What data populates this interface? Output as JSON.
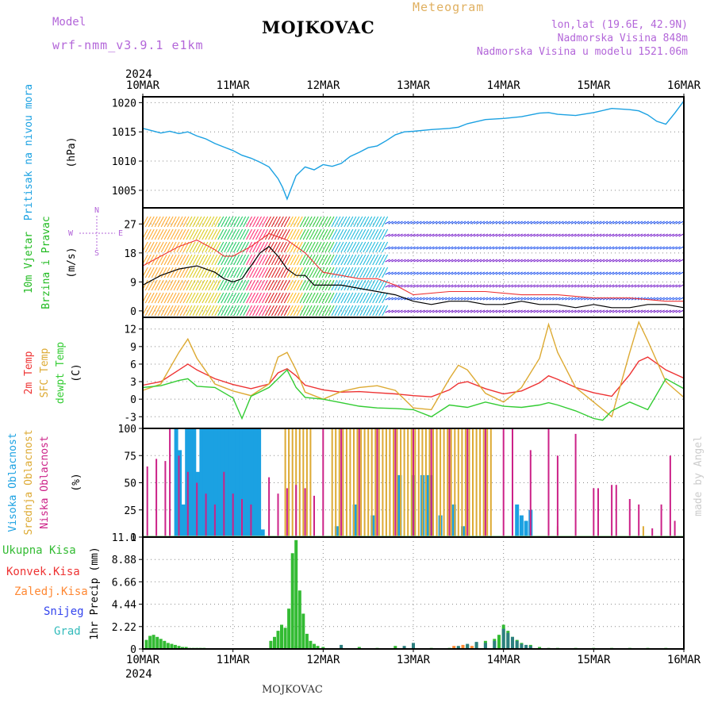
{
  "header": {
    "model_label": "Model",
    "model_name": "wrf-nmm_v3.9.1 e1km",
    "station": "MOJKOVAC",
    "meteogram_label": "Meteogram",
    "lonlat": "lon,lat (19.6E, 42.9N)",
    "elevation": "Nadmorska Visina 848m",
    "elevation_model": "Nadmorska Visina u modelu 1521.06m",
    "year_top": "2024",
    "year_bottom": "2024",
    "bottom_station": "MOJKOVAC",
    "credit": "made by Angel"
  },
  "colors": {
    "pressure": "#1ba1e2",
    "wind_label": "#22bb22",
    "temp2m": "#ee3333",
    "sfc": "#ddaa33",
    "dewpt": "#33cc33",
    "high_cloud": "#1ba1e2",
    "mid_cloud": "#ddaa33",
    "low_cloud": "#cc2288",
    "precip_total": "#33bb33",
    "precip_conv": "#ee3333",
    "precip_frozen": "#ff8833",
    "snow": "#3344ee",
    "graupel": "#33bbbb"
  },
  "chart_data": [
    {
      "type": "line",
      "panel": "pressure",
      "ylabel_series": "Pritisak na nivou mora",
      "ylabel_unit": "(hPa)",
      "x_ticks": [
        "10MAR",
        "11MAR",
        "12MAR",
        "13MAR",
        "14MAR",
        "15MAR",
        "16MAR"
      ],
      "y_ticks": [
        1005,
        1010,
        1015,
        1020
      ],
      "ylim": [
        1002,
        1021
      ],
      "grid": true,
      "series": [
        {
          "color": "#1ba1e2",
          "x": [
            0,
            0.1,
            0.2,
            0.3,
            0.4,
            0.5,
            0.6,
            0.7,
            0.8,
            0.9,
            1.0,
            1.1,
            1.2,
            1.3,
            1.4,
            1.5,
            1.55,
            1.6,
            1.65,
            1.7,
            1.8,
            1.9,
            2.0,
            2.1,
            2.2,
            2.3,
            2.4,
            2.5,
            2.6,
            2.7,
            2.8,
            2.9,
            3.0,
            3.2,
            3.4,
            3.5,
            3.6,
            3.8,
            4.0,
            4.2,
            4.4,
            4.5,
            4.6,
            4.8,
            5.0,
            5.2,
            5.4,
            5.5,
            5.6,
            5.7,
            5.8,
            5.9,
            6.0
          ],
          "values": [
            1015.6,
            1015.2,
            1014.8,
            1015.1,
            1014.7,
            1015.0,
            1014.3,
            1013.8,
            1013.0,
            1012.4,
            1011.8,
            1011.0,
            1010.5,
            1009.8,
            1009.0,
            1007.0,
            1005.5,
            1003.5,
            1005.5,
            1007.5,
            1009.0,
            1008.5,
            1009.4,
            1009.1,
            1009.6,
            1010.8,
            1011.5,
            1012.3,
            1012.6,
            1013.5,
            1014.5,
            1015.0,
            1015.1,
            1015.4,
            1015.6,
            1015.8,
            1016.4,
            1017.1,
            1017.3,
            1017.6,
            1018.2,
            1018.3,
            1018.0,
            1017.8,
            1018.3,
            1019.0,
            1018.8,
            1018.6,
            1017.9,
            1016.8,
            1016.3,
            1018.2,
            1020.3
          ]
        }
      ]
    },
    {
      "type": "line",
      "panel": "wind",
      "ylabel_series": "10m Vjetar",
      "ylabel_series2": "Brzina i Pravac",
      "ylabel_unit": "(m/s)",
      "compass": [
        "N",
        "W",
        "E",
        "S"
      ],
      "y_ticks": [
        0,
        9,
        18,
        27
      ],
      "ylim": [
        -2,
        32
      ],
      "grid": true,
      "series": [
        {
          "name": "speed",
          "color": "#000000",
          "x": [
            0,
            0.2,
            0.4,
            0.6,
            0.8,
            0.9,
            1.0,
            1.1,
            1.2,
            1.3,
            1.4,
            1.5,
            1.6,
            1.7,
            1.8,
            1.9,
            2.0,
            2.2,
            2.4,
            2.6,
            2.8,
            3.0,
            3.2,
            3.4,
            3.6,
            3.8,
            4.0,
            4.2,
            4.4,
            4.6,
            4.8,
            5.0,
            5.2,
            5.4,
            5.6,
            5.8,
            6.0
          ],
          "values": [
            8,
            11,
            13,
            14,
            12,
            10,
            9,
            10,
            14,
            18,
            20,
            17,
            13,
            11,
            11,
            8,
            8,
            8,
            7,
            6,
            5,
            3,
            2,
            3,
            3,
            2,
            2,
            3,
            2,
            2,
            1,
            2,
            1,
            1,
            2,
            2,
            1
          ]
        },
        {
          "name": "gust",
          "color": "#ee3333",
          "x": [
            0,
            0.2,
            0.4,
            0.6,
            0.8,
            0.9,
            1.0,
            1.2,
            1.4,
            1.6,
            1.8,
            2.0,
            2.2,
            2.4,
            2.6,
            2.8,
            3.0,
            3.4,
            3.8,
            4.2,
            4.6,
            5.0,
            5.4,
            5.8,
            6.0
          ],
          "values": [
            14,
            17,
            20,
            22,
            19,
            17,
            17,
            20,
            24,
            22,
            18,
            12,
            11,
            10,
            10,
            8,
            5,
            6,
            6,
            5,
            5,
            4,
            4,
            3,
            3
          ]
        }
      ]
    },
    {
      "type": "line",
      "panel": "temperature",
      "ylabel_lines": [
        "2m Temp",
        "SFC Temp",
        "dewpt Temp"
      ],
      "ylabel_unit": "(C)",
      "y_ticks": [
        -3,
        0,
        3,
        6,
        9,
        12
      ],
      "ylim": [
        -5,
        14
      ],
      "grid": true,
      "series": [
        {
          "name": "2m Temp",
          "color": "#ee3333",
          "x": [
            0,
            0.2,
            0.4,
            0.5,
            0.6,
            0.8,
            1.0,
            1.2,
            1.4,
            1.5,
            1.6,
            1.7,
            1.8,
            2.0,
            2.2,
            2.4,
            2.6,
            2.8,
            3.0,
            3.2,
            3.4,
            3.5,
            3.6,
            3.8,
            4.0,
            4.2,
            4.4,
            4.5,
            4.6,
            4.8,
            5.0,
            5.2,
            5.4,
            5.5,
            5.6,
            5.8,
            6.0
          ],
          "values": [
            2.4,
            3.0,
            5.0,
            6.0,
            5.0,
            3.5,
            2.5,
            1.8,
            2.6,
            4.5,
            5.2,
            4.0,
            2.4,
            1.6,
            1.2,
            1.3,
            1.1,
            0.9,
            0.6,
            0.4,
            1.6,
            2.7,
            3.0,
            1.8,
            0.9,
            1.4,
            2.8,
            4.0,
            3.4,
            2.0,
            1.1,
            0.5,
            4.2,
            6.5,
            7.2,
            5.0,
            3.6
          ]
        },
        {
          "name": "SFC Temp",
          "color": "#ddaa33",
          "x": [
            0,
            0.2,
            0.4,
            0.5,
            0.6,
            0.8,
            1.0,
            1.2,
            1.4,
            1.5,
            1.6,
            1.7,
            1.8,
            2.0,
            2.2,
            2.4,
            2.6,
            2.8,
            3.0,
            3.2,
            3.4,
            3.5,
            3.6,
            3.8,
            4.0,
            4.2,
            4.4,
            4.5,
            4.6,
            4.8,
            5.0,
            5.2,
            5.4,
            5.5,
            5.6,
            5.8,
            6.0
          ],
          "values": [
            1.5,
            2.6,
            8.0,
            10.3,
            7.0,
            2.6,
            1.4,
            0.6,
            2.6,
            7.2,
            8.0,
            5.0,
            1.2,
            0.0,
            1.3,
            2.0,
            2.3,
            1.5,
            -1.5,
            -1.8,
            3.5,
            5.8,
            5.0,
            1.0,
            -0.5,
            2.0,
            7.0,
            12.8,
            8.0,
            2.0,
            -0.5,
            -3.0,
            8.0,
            13.2,
            10.0,
            3.0,
            0.3
          ]
        },
        {
          "name": "dewpt Temp",
          "color": "#33cc33",
          "x": [
            0,
            0.2,
            0.4,
            0.5,
            0.6,
            0.8,
            1.0,
            1.1,
            1.2,
            1.4,
            1.5,
            1.6,
            1.7,
            1.8,
            2.0,
            2.2,
            2.4,
            2.6,
            2.8,
            3.0,
            3.2,
            3.4,
            3.6,
            3.8,
            4.0,
            4.2,
            4.4,
            4.5,
            4.6,
            4.8,
            5.0,
            5.1,
            5.2,
            5.4,
            5.6,
            5.8,
            6.0
          ],
          "values": [
            2.0,
            2.3,
            3.2,
            3.5,
            2.2,
            2.0,
            0.2,
            -3.3,
            0.5,
            2.0,
            3.5,
            5.0,
            2.0,
            0.3,
            0.0,
            -0.6,
            -1.2,
            -1.5,
            -1.6,
            -1.8,
            -3.0,
            -1.0,
            -1.4,
            -0.5,
            -1.2,
            -1.4,
            -1.0,
            -0.6,
            -1.0,
            -2.0,
            -3.3,
            -3.6,
            -2.0,
            -0.5,
            -1.8,
            3.5,
            1.8
          ]
        }
      ]
    },
    {
      "type": "bar",
      "panel": "clouds",
      "ylabel_lines": [
        "Visoka Oblacnost",
        "Srednja Oblacnost",
        "Niska Oblacnost"
      ],
      "ylabel_unit": "(%)",
      "y_ticks": [
        0,
        25,
        50,
        75,
        100
      ],
      "ylim": [
        0,
        100
      ],
      "series": [
        {
          "name": "Visoka Oblacnost",
          "color": "#1ba1e2",
          "x": [
            0.37,
            0.41,
            0.45,
            0.49,
            0.53,
            0.57,
            0.61,
            0.65,
            0.69,
            0.73,
            0.77,
            0.81,
            0.85,
            0.89,
            0.93,
            0.97,
            1.01,
            1.05,
            1.09,
            1.13,
            1.17,
            1.21,
            1.25,
            1.29,
            1.33,
            2.15,
            2.35,
            2.55,
            2.85,
            3.0,
            3.1,
            3.15,
            3.2,
            3.3,
            3.45,
            3.55,
            4.15,
            4.2,
            4.25,
            4.3
          ],
          "values": [
            100,
            80,
            30,
            100,
            100,
            100,
            60,
            100,
            100,
            100,
            100,
            100,
            100,
            100,
            100,
            100,
            100,
            100,
            100,
            100,
            100,
            100,
            100,
            100,
            7,
            10,
            30,
            20,
            57,
            57,
            57,
            57,
            57,
            20,
            30,
            10,
            30,
            20,
            15,
            25
          ]
        },
        {
          "name": "Srednja Oblacnost",
          "color": "#ddaa33",
          "x": [
            1.58,
            1.62,
            1.66,
            1.7,
            1.74,
            1.78,
            1.82,
            1.86,
            1.9,
            2.1,
            2.14,
            2.18,
            2.22,
            2.26,
            2.3,
            2.34,
            2.38,
            2.42,
            2.46,
            2.5,
            2.54,
            2.58,
            2.62,
            2.66,
            2.7,
            2.74,
            2.78,
            2.82,
            2.86,
            2.9,
            2.94,
            2.98,
            3.02,
            3.06,
            3.1,
            3.14,
            3.18,
            3.22,
            3.26,
            3.3,
            3.34,
            3.38,
            3.42,
            3.46,
            3.5,
            3.54,
            3.58,
            3.62,
            3.66,
            3.7,
            3.74,
            3.78,
            3.82,
            3.86,
            4.6,
            5.55
          ],
          "values": [
            100,
            100,
            100,
            100,
            100,
            100,
            100,
            100,
            30,
            100,
            100,
            100,
            100,
            100,
            100,
            100,
            100,
            100,
            100,
            100,
            100,
            100,
            100,
            100,
            100,
            100,
            100,
            100,
            100,
            100,
            100,
            100,
            100,
            100,
            100,
            100,
            100,
            100,
            100,
            100,
            100,
            100,
            100,
            100,
            100,
            100,
            100,
            100,
            100,
            100,
            100,
            100,
            100,
            100,
            10,
            10
          ]
        },
        {
          "name": "Niska Oblacnost",
          "color": "#cc2288",
          "x": [
            0.05,
            0.15,
            0.25,
            0.3,
            0.4,
            0.5,
            0.6,
            0.7,
            0.8,
            0.9,
            1.0,
            1.1,
            1.2,
            1.4,
            1.5,
            1.6,
            1.7,
            1.8,
            1.9,
            2.0,
            2.2,
            2.4,
            2.6,
            2.8,
            3.0,
            3.2,
            3.4,
            3.6,
            3.8,
            4.0,
            4.1,
            4.3,
            4.5,
            4.6,
            4.8,
            5.0,
            5.05,
            5.2,
            5.25,
            5.4,
            5.5,
            5.65,
            5.75,
            5.85,
            5.9
          ],
          "values": [
            65,
            72,
            70,
            100,
            75,
            60,
            50,
            40,
            30,
            60,
            40,
            35,
            30,
            55,
            40,
            45,
            48,
            45,
            38,
            100,
            100,
            100,
            100,
            100,
            100,
            100,
            100,
            100,
            100,
            100,
            100,
            80,
            100,
            75,
            95,
            45,
            45,
            48,
            48,
            35,
            30,
            8,
            30,
            75,
            15
          ]
        }
      ]
    },
    {
      "type": "bar",
      "panel": "precip",
      "ylabel_lines": [
        "Ukupna Kisa",
        "Konvek.Kisa",
        "Zaledj.Kisa",
        "Snijeg",
        "Grad"
      ],
      "ylabel_unit": "1hr Precip (mm)",
      "y_ticks": [
        0,
        2.22,
        4.44,
        6.66,
        8.88,
        11.1
      ],
      "ylim": [
        0,
        11.1
      ],
      "series": [
        {
          "name": "Ukupna Kisa",
          "color": "#33bb33",
          "x": [
            0.04,
            0.08,
            0.12,
            0.16,
            0.2,
            0.24,
            0.28,
            0.32,
            0.36,
            0.4,
            0.44,
            0.48,
            0.52,
            0.56,
            0.6,
            0.64,
            0.68,
            1.7,
            1.42,
            1.46,
            1.5,
            1.54,
            1.58,
            1.62,
            1.66,
            1.7,
            1.74,
            1.78,
            1.82,
            1.86,
            1.9,
            1.94,
            2.0,
            2.2,
            2.4,
            2.6,
            2.8,
            3.0,
            3.2,
            3.4,
            3.5,
            3.6,
            3.7,
            3.8,
            3.9,
            3.95,
            4.0,
            4.05,
            4.1,
            4.15,
            4.2,
            4.3,
            4.4,
            4.5,
            4.6,
            4.8,
            5.0,
            5.2,
            5.4,
            5.6,
            5.8
          ],
          "values": [
            0.9,
            1.3,
            1.4,
            1.2,
            1.0,
            0.8,
            0.6,
            0.5,
            0.4,
            0.3,
            0.2,
            0.2,
            0.1,
            0.1,
            0.1,
            0.1,
            0.1,
            0.3,
            0.8,
            1.2,
            1.8,
            2.4,
            2.1,
            4.0,
            9.5,
            10.8,
            5.8,
            3.5,
            1.5,
            0.8,
            0.5,
            0.3,
            0.2,
            0.1,
            0.2,
            0.1,
            0.3,
            0.2,
            0.1,
            0.1,
            0.2,
            0.4,
            0.6,
            0.8,
            1.0,
            1.4,
            2.4,
            1.8,
            1.2,
            0.9,
            0.6,
            0.4,
            0.2,
            0.1,
            0.1,
            0.1,
            0.1,
            0.1,
            0.1,
            0.1,
            0.1
          ]
        },
        {
          "name": "Grad",
          "color": "#2c7f7f",
          "x": [
            3.0,
            3.5,
            3.6,
            3.7,
            3.8,
            3.9,
            4.0,
            4.05,
            4.1,
            4.15,
            4.2,
            4.25,
            4.3,
            2.2,
            2.9
          ],
          "values": [
            0.6,
            0.3,
            0.5,
            0.7,
            0.6,
            0.8,
            2.0,
            1.6,
            1.2,
            0.8,
            0.5,
            0.4,
            0.3,
            0.4,
            0.3
          ]
        },
        {
          "name": "Zaledj.Kisa",
          "color": "#ff8833",
          "x": [
            3.45,
            3.55,
            3.65
          ],
          "values": [
            0.3,
            0.4,
            0.3
          ]
        }
      ]
    }
  ]
}
